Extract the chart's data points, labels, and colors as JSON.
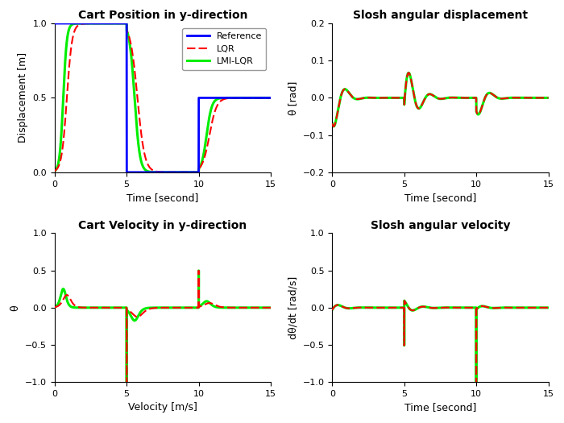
{
  "title_topleft": "Cart Position in y-direction",
  "title_topright": "Slosh angular displacement",
  "title_botleft": "Cart Velocity in y-direction",
  "title_botright": "Slosh angular velocity",
  "xlabel_topleft": "Time [second]",
  "xlabel_topright": "Time [second]",
  "xlabel_botleft": "Velocity [m/s]",
  "xlabel_botright": "Time [second]",
  "ylabel_topleft": "Displacement [m]",
  "ylabel_topright": "θ [rad]",
  "ylabel_botleft": "θ",
  "ylabel_botright": "dθ/dt [rad/s]",
  "xlim": [
    0,
    15
  ],
  "ylim_topleft": [
    0,
    1
  ],
  "ylim_topright": [
    -0.2,
    0.2
  ],
  "ylim_botleft": [
    -1,
    1
  ],
  "ylim_botright": [
    -1,
    1
  ],
  "legend_labels": [
    "Reference",
    "LQR",
    "LMI-LQR"
  ],
  "colors": {
    "reference": "#0000FF",
    "lqr": "#FF0000",
    "lmi": "#00EE00"
  },
  "background": "#FFFFFF"
}
